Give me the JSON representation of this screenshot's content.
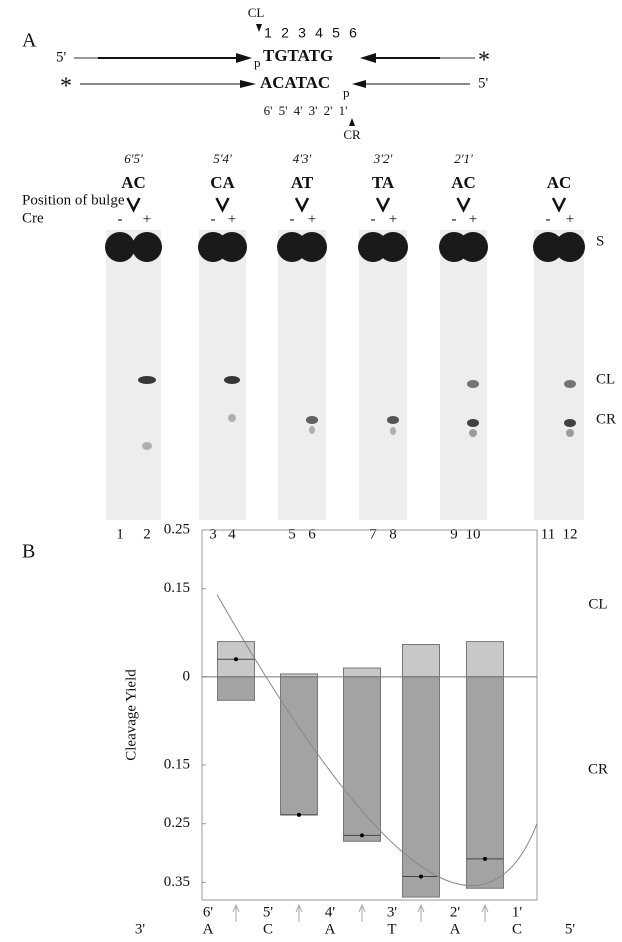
{
  "figure": {
    "panel_a": {
      "label": "A",
      "diagram": {
        "cl_marker": "CL",
        "top_numbers": [
          "1",
          "2",
          "3",
          "4",
          "5",
          "6"
        ],
        "top_five_prime": "5'",
        "top_p": "p",
        "top_sequence": "TGTATG",
        "top_star": "*",
        "bottom_star": "*",
        "bottom_sequence": "ACATAC",
        "bottom_p": "p",
        "bottom_five_prime": "5'",
        "bottom_numbers": [
          "6'",
          "5'",
          "4'",
          "3'",
          "2'",
          "1'"
        ],
        "cr_marker": "CR"
      },
      "row_labels": [
        "Position of bulge",
        "Cre"
      ],
      "gels": [
        {
          "position": "6'5'",
          "bases": "AC",
          "minus": "-",
          "plus": "+",
          "lanes": [
            "1",
            "2"
          ]
        },
        {
          "position": "5'4'",
          "bases": "CA",
          "minus": "-",
          "plus": "+",
          "lanes": [
            "3",
            "4"
          ]
        },
        {
          "position": "4'3'",
          "bases": "AT",
          "minus": "-",
          "plus": "+",
          "lanes": [
            "5",
            "6"
          ]
        },
        {
          "position": "3'2'",
          "bases": "TA",
          "minus": "-",
          "plus": "+",
          "lanes": [
            "7",
            "8"
          ]
        },
        {
          "position": "2'1'",
          "bases": "AC",
          "minus": "-",
          "plus": "+",
          "lanes": [
            "9",
            "10"
          ]
        },
        {
          "position": null,
          "bases": "AC",
          "minus": "-",
          "plus": "+",
          "lanes": [
            "11",
            "12"
          ]
        }
      ],
      "band_labels": [
        "S",
        "CL",
        "CR"
      ]
    },
    "panel_b_label": "B"
  },
  "chart_data": {
    "type": "bar",
    "y_label": "Cleavage Yield",
    "ylim": [
      -0.38,
      0.25
    ],
    "yticks": [
      0.25,
      0.15,
      0,
      {
        "value": -0.15,
        "label": "0.15"
      },
      {
        "value": -0.25,
        "label": "0.25"
      },
      {
        "value": -0.35,
        "label": "0.35"
      }
    ],
    "series": [
      {
        "name": "CL",
        "color": "#c8c8c8",
        "values": [
          0.06,
          0.005,
          0.015,
          0.055,
          0.06
        ]
      },
      {
        "name": "CR",
        "color": "#a3a3a3",
        "values": [
          -0.04,
          -0.235,
          -0.28,
          -0.375,
          -0.36
        ]
      }
    ],
    "points": [
      0.03,
      -0.235,
      -0.27,
      -0.34,
      -0.31
    ],
    "x_labels": {
      "top": [
        "6'",
        "5'",
        "4'",
        "3'",
        "2'",
        "1'"
      ],
      "bottom": [
        "3'",
        "A",
        "C",
        "A",
        "T",
        "A",
        "C",
        "5'"
      ]
    }
  }
}
